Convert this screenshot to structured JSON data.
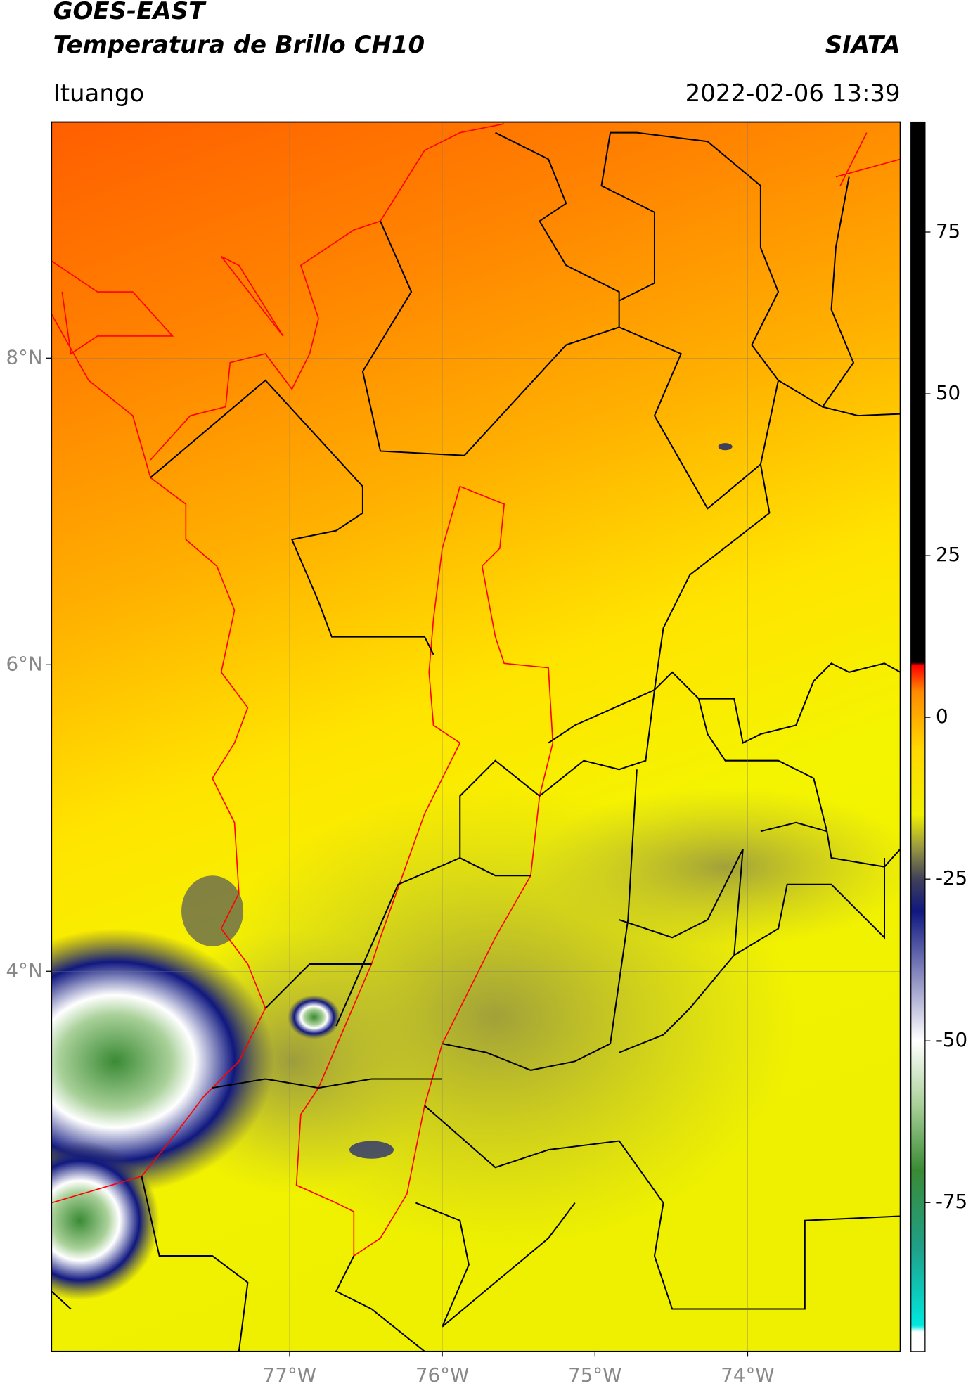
{
  "map": {
    "title": "GOES-EAST",
    "subtitle": "Temperatura de Brillo CH10",
    "credit": "SIATA",
    "region": "Ituango",
    "timestamp": "2022-02-06 13:39",
    "xlim": [
      -78.56,
      -73.0
    ],
    "ylim": [
      1.52,
      9.54
    ],
    "xticks": [
      {
        "value": -77,
        "label": "77°W"
      },
      {
        "value": -76,
        "label": "76°W"
      },
      {
        "value": -75,
        "label": "75°W"
      },
      {
        "value": -74,
        "label": "74°W"
      }
    ],
    "yticks": [
      {
        "value": 4,
        "label": "4°N"
      },
      {
        "value": 6,
        "label": "6°N"
      },
      {
        "value": 8,
        "label": "8°N"
      }
    ],
    "grid": true,
    "colorbar": {
      "clim": [
        -98,
        92
      ],
      "ticks": [
        -75,
        -50,
        -25,
        0,
        25,
        50,
        75
      ],
      "colormap": [
        {
          "value": -98,
          "color": "#ffffff"
        },
        {
          "value": -95,
          "color": "#ffffff"
        },
        {
          "value": -94,
          "color": "#00e8e0"
        },
        {
          "value": -82,
          "color": "#1fa088"
        },
        {
          "value": -70,
          "color": "#3a8a35"
        },
        {
          "value": -60,
          "color": "#a8d098"
        },
        {
          "value": -50,
          "color": "#ffffff"
        },
        {
          "value": -40,
          "color": "#8a8cc0"
        },
        {
          "value": -30,
          "color": "#101880"
        },
        {
          "value": -25,
          "color": "#404058"
        },
        {
          "value": -20,
          "color": "#9a9a40"
        },
        {
          "value": -15,
          "color": "#f0f000"
        },
        {
          "value": -5,
          "color": "#ffd800"
        },
        {
          "value": 4,
          "color": "#ff8a00"
        },
        {
          "value": 8,
          "color": "#ff0000"
        },
        {
          "value": 8.5,
          "color": "#000000"
        },
        {
          "value": 92,
          "color": "#000000"
        }
      ]
    }
  }
}
